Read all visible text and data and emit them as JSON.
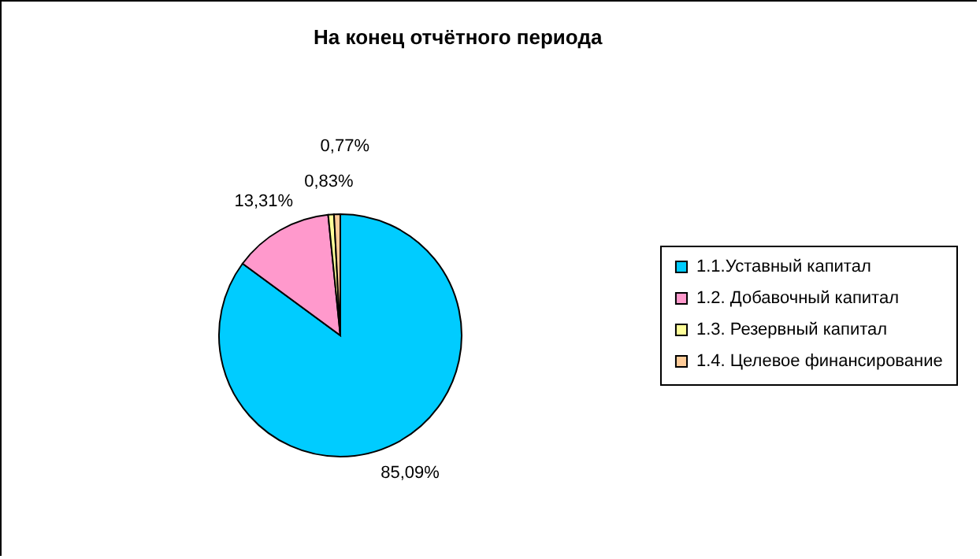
{
  "chart_data": {
    "type": "pie",
    "title": "На конец отчётного периода",
    "categories": [
      "1.1.Уставный капитал",
      "1.2. Добавочный капитал",
      "1.3. Резервный капитал",
      "1.4. Целевое финансирование"
    ],
    "values": [
      85.09,
      13.31,
      0.77,
      0.83
    ],
    "colors": [
      "#00ccff",
      "#ff99cc",
      "#ffff99",
      "#ffcc99"
    ],
    "value_labels": [
      "85,09%",
      "13,31%",
      "0,77%",
      "0,83%"
    ],
    "legend": "right"
  }
}
